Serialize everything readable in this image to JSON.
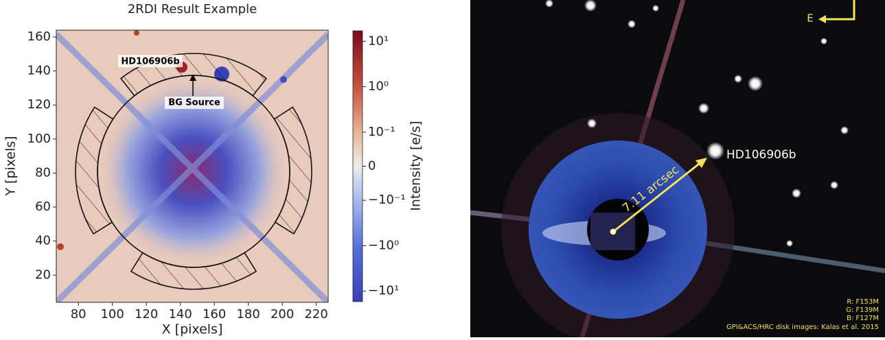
{
  "left_panel": {
    "title": "2RDI Result Example",
    "x_label": "X [pixels]",
    "y_label": "Y [pixels]",
    "xlim": [
      67,
      227
    ],
    "ylim": [
      4,
      164
    ],
    "xticks": [
      80,
      100,
      120,
      140,
      160,
      180,
      200,
      220
    ],
    "yticks": [
      20,
      40,
      60,
      80,
      100,
      120,
      140,
      160
    ],
    "annotations": {
      "planet": "HD106906b",
      "background": "BG Source"
    },
    "colorbar": {
      "label": "Intensity [e/s]",
      "scale": "symlog",
      "linthresh": 0.1,
      "lim": [
        -17,
        17
      ],
      "ticks": [
        {
          "value": 10,
          "label": "10¹"
        },
        {
          "value": 1,
          "label": "10⁰"
        },
        {
          "value": 0.1,
          "label": "10⁻¹"
        },
        0,
        {
          "value": -0.1,
          "label": "−10⁻¹"
        },
        {
          "value": -1,
          "label": "−10⁰"
        },
        {
          "value": -10,
          "label": "−10¹"
        }
      ]
    }
  },
  "right_panel": {
    "compass": "E",
    "planet_label": "HD106906b",
    "separation": "7.11 arcsec",
    "filters": [
      "R: F153M",
      "G: F139M",
      "B: F127M"
    ],
    "credit": "GPI&ACS/HRC disk images: Kalas et al. 2015"
  }
}
